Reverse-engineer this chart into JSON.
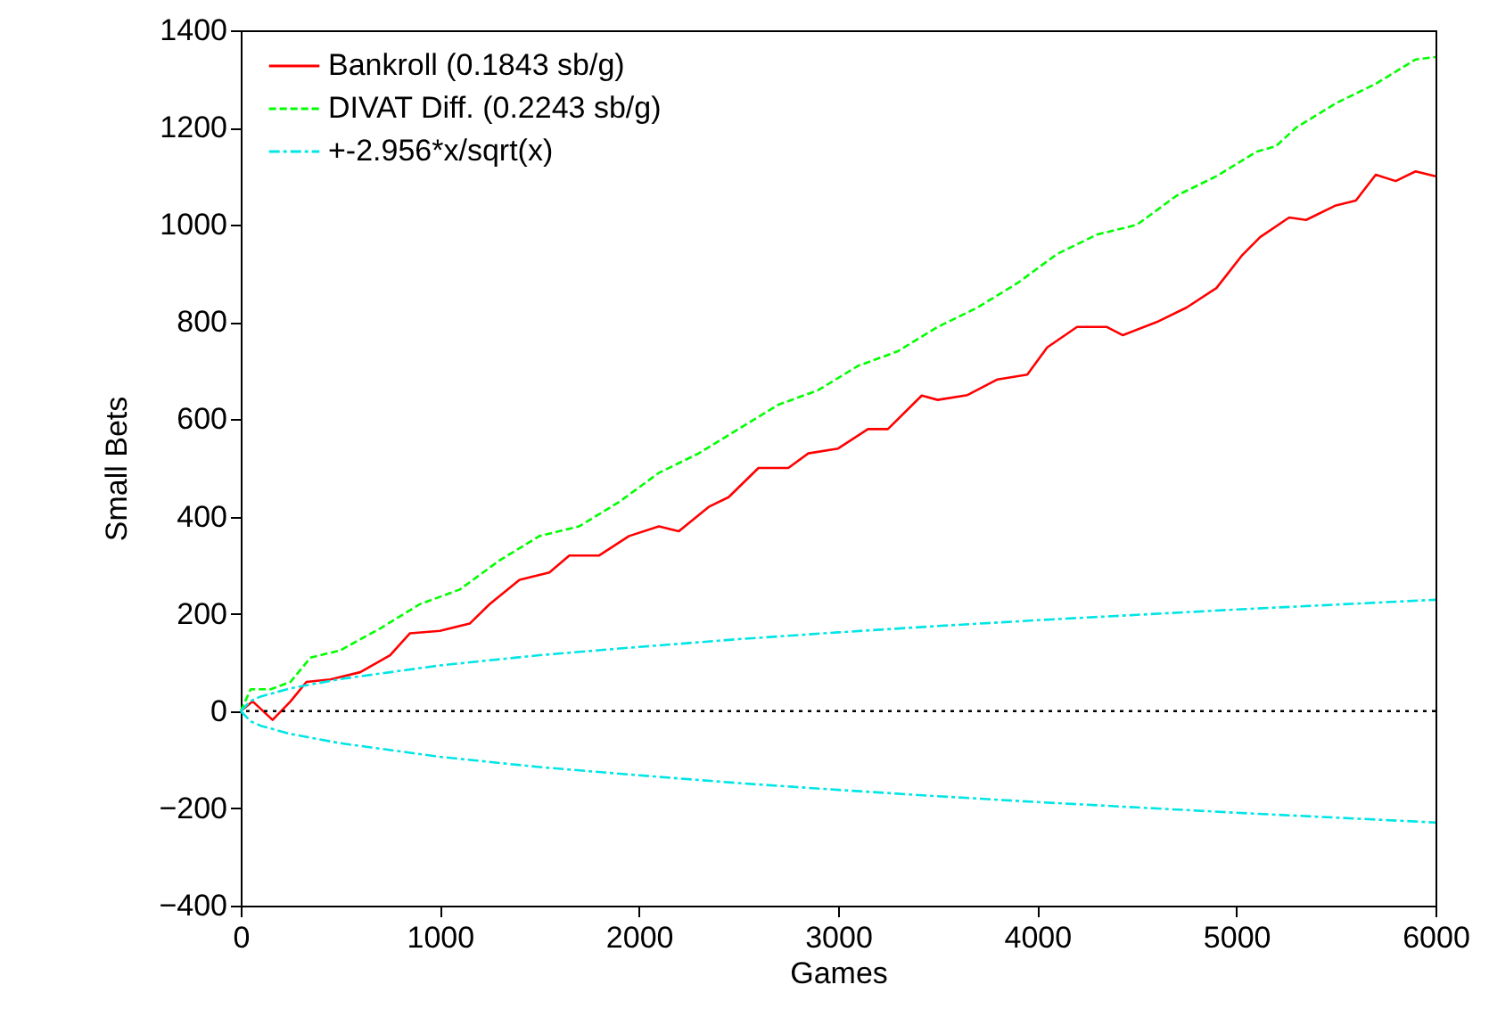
{
  "chart_data": {
    "type": "line",
    "xlabel": "Games",
    "ylabel": "Small Bets",
    "xlim": [
      0,
      6000
    ],
    "xticks": [
      0,
      1000,
      2000,
      3000,
      4000,
      5000,
      6000
    ],
    "ylim": [
      -400,
      1400
    ],
    "yticks": [
      -400,
      -200,
      0,
      200,
      400,
      600,
      800,
      1000,
      1200,
      1400
    ],
    "grid": false,
    "legend": "top left",
    "marker": "none",
    "ref_lines": [
      {
        "axis": "y",
        "value": 0,
        "color": "#000000",
        "line_style": "dotted"
      }
    ],
    "series": [
      {
        "name": "Bankroll (0.1843 sb/g)",
        "color": "#ff0000",
        "line_style": "solid",
        "x": [
          0,
          60,
          160,
          250,
          330,
          450,
          600,
          750,
          850,
          1000,
          1150,
          1250,
          1400,
          1550,
          1650,
          1800,
          1950,
          2100,
          2200,
          2350,
          2450,
          2600,
          2750,
          2850,
          3000,
          3150,
          3250,
          3420,
          3500,
          3650,
          3800,
          3950,
          4050,
          4200,
          4350,
          4430,
          4600,
          4750,
          4900,
          5030,
          5120,
          5265,
          5350,
          5500,
          5600,
          5700,
          5800,
          5900,
          6000
        ],
        "values": [
          0,
          20,
          -18,
          20,
          60,
          65,
          80,
          115,
          160,
          165,
          180,
          220,
          270,
          285,
          320,
          320,
          360,
          380,
          370,
          420,
          440,
          500,
          500,
          530,
          540,
          580,
          580,
          649,
          640,
          650,
          682,
          692,
          748,
          790,
          790,
          773,
          800,
          830,
          870,
          938,
          975,
          1015,
          1010,
          1040,
          1050,
          1103,
          1090,
          1110,
          1100
        ]
      },
      {
        "name": "DIVAT Diff. (0.2243 sb/g)",
        "color": "#00ff00",
        "line_style": "dashed",
        "x": [
          0,
          50,
          150,
          250,
          350,
          500,
          700,
          900,
          1100,
          1300,
          1500,
          1700,
          1900,
          2100,
          2300,
          2500,
          2700,
          2900,
          3100,
          3300,
          3500,
          3700,
          3900,
          4100,
          4300,
          4500,
          4700,
          4900,
          5100,
          5200,
          5300,
          5500,
          5700,
          5900,
          6000
        ],
        "values": [
          0,
          45,
          45,
          60,
          110,
          125,
          170,
          220,
          250,
          310,
          360,
          380,
          430,
          490,
          530,
          580,
          630,
          660,
          710,
          740,
          790,
          830,
          880,
          940,
          980,
          1000,
          1060,
          1100,
          1150,
          1162,
          1200,
          1250,
          1290,
          1340,
          1345
        ]
      },
      {
        "name": "+-2.956*x/sqrt(x)",
        "color": "#00e5e5",
        "line_style": "dashdot",
        "x": [
          0,
          50,
          100,
          250,
          500,
          1000,
          1500,
          2000,
          2500,
          3000,
          3500,
          4000,
          4500,
          5000,
          5500,
          6000
        ],
        "values": [
          0,
          21,
          30,
          47,
          66,
          94,
          115,
          132,
          148,
          162,
          175,
          187,
          198,
          209,
          219,
          229
        ]
      },
      {
        "color": "#00e5e5",
        "line_style": "dashdot",
        "x": [
          0,
          50,
          100,
          250,
          500,
          1000,
          1500,
          2000,
          2500,
          3000,
          3500,
          4000,
          4500,
          5000,
          5500,
          6000
        ],
        "values": [
          0,
          -21,
          -30,
          -47,
          -66,
          -94,
          -115,
          -132,
          -148,
          -162,
          -175,
          -187,
          -198,
          -209,
          -219,
          -229
        ]
      }
    ]
  }
}
